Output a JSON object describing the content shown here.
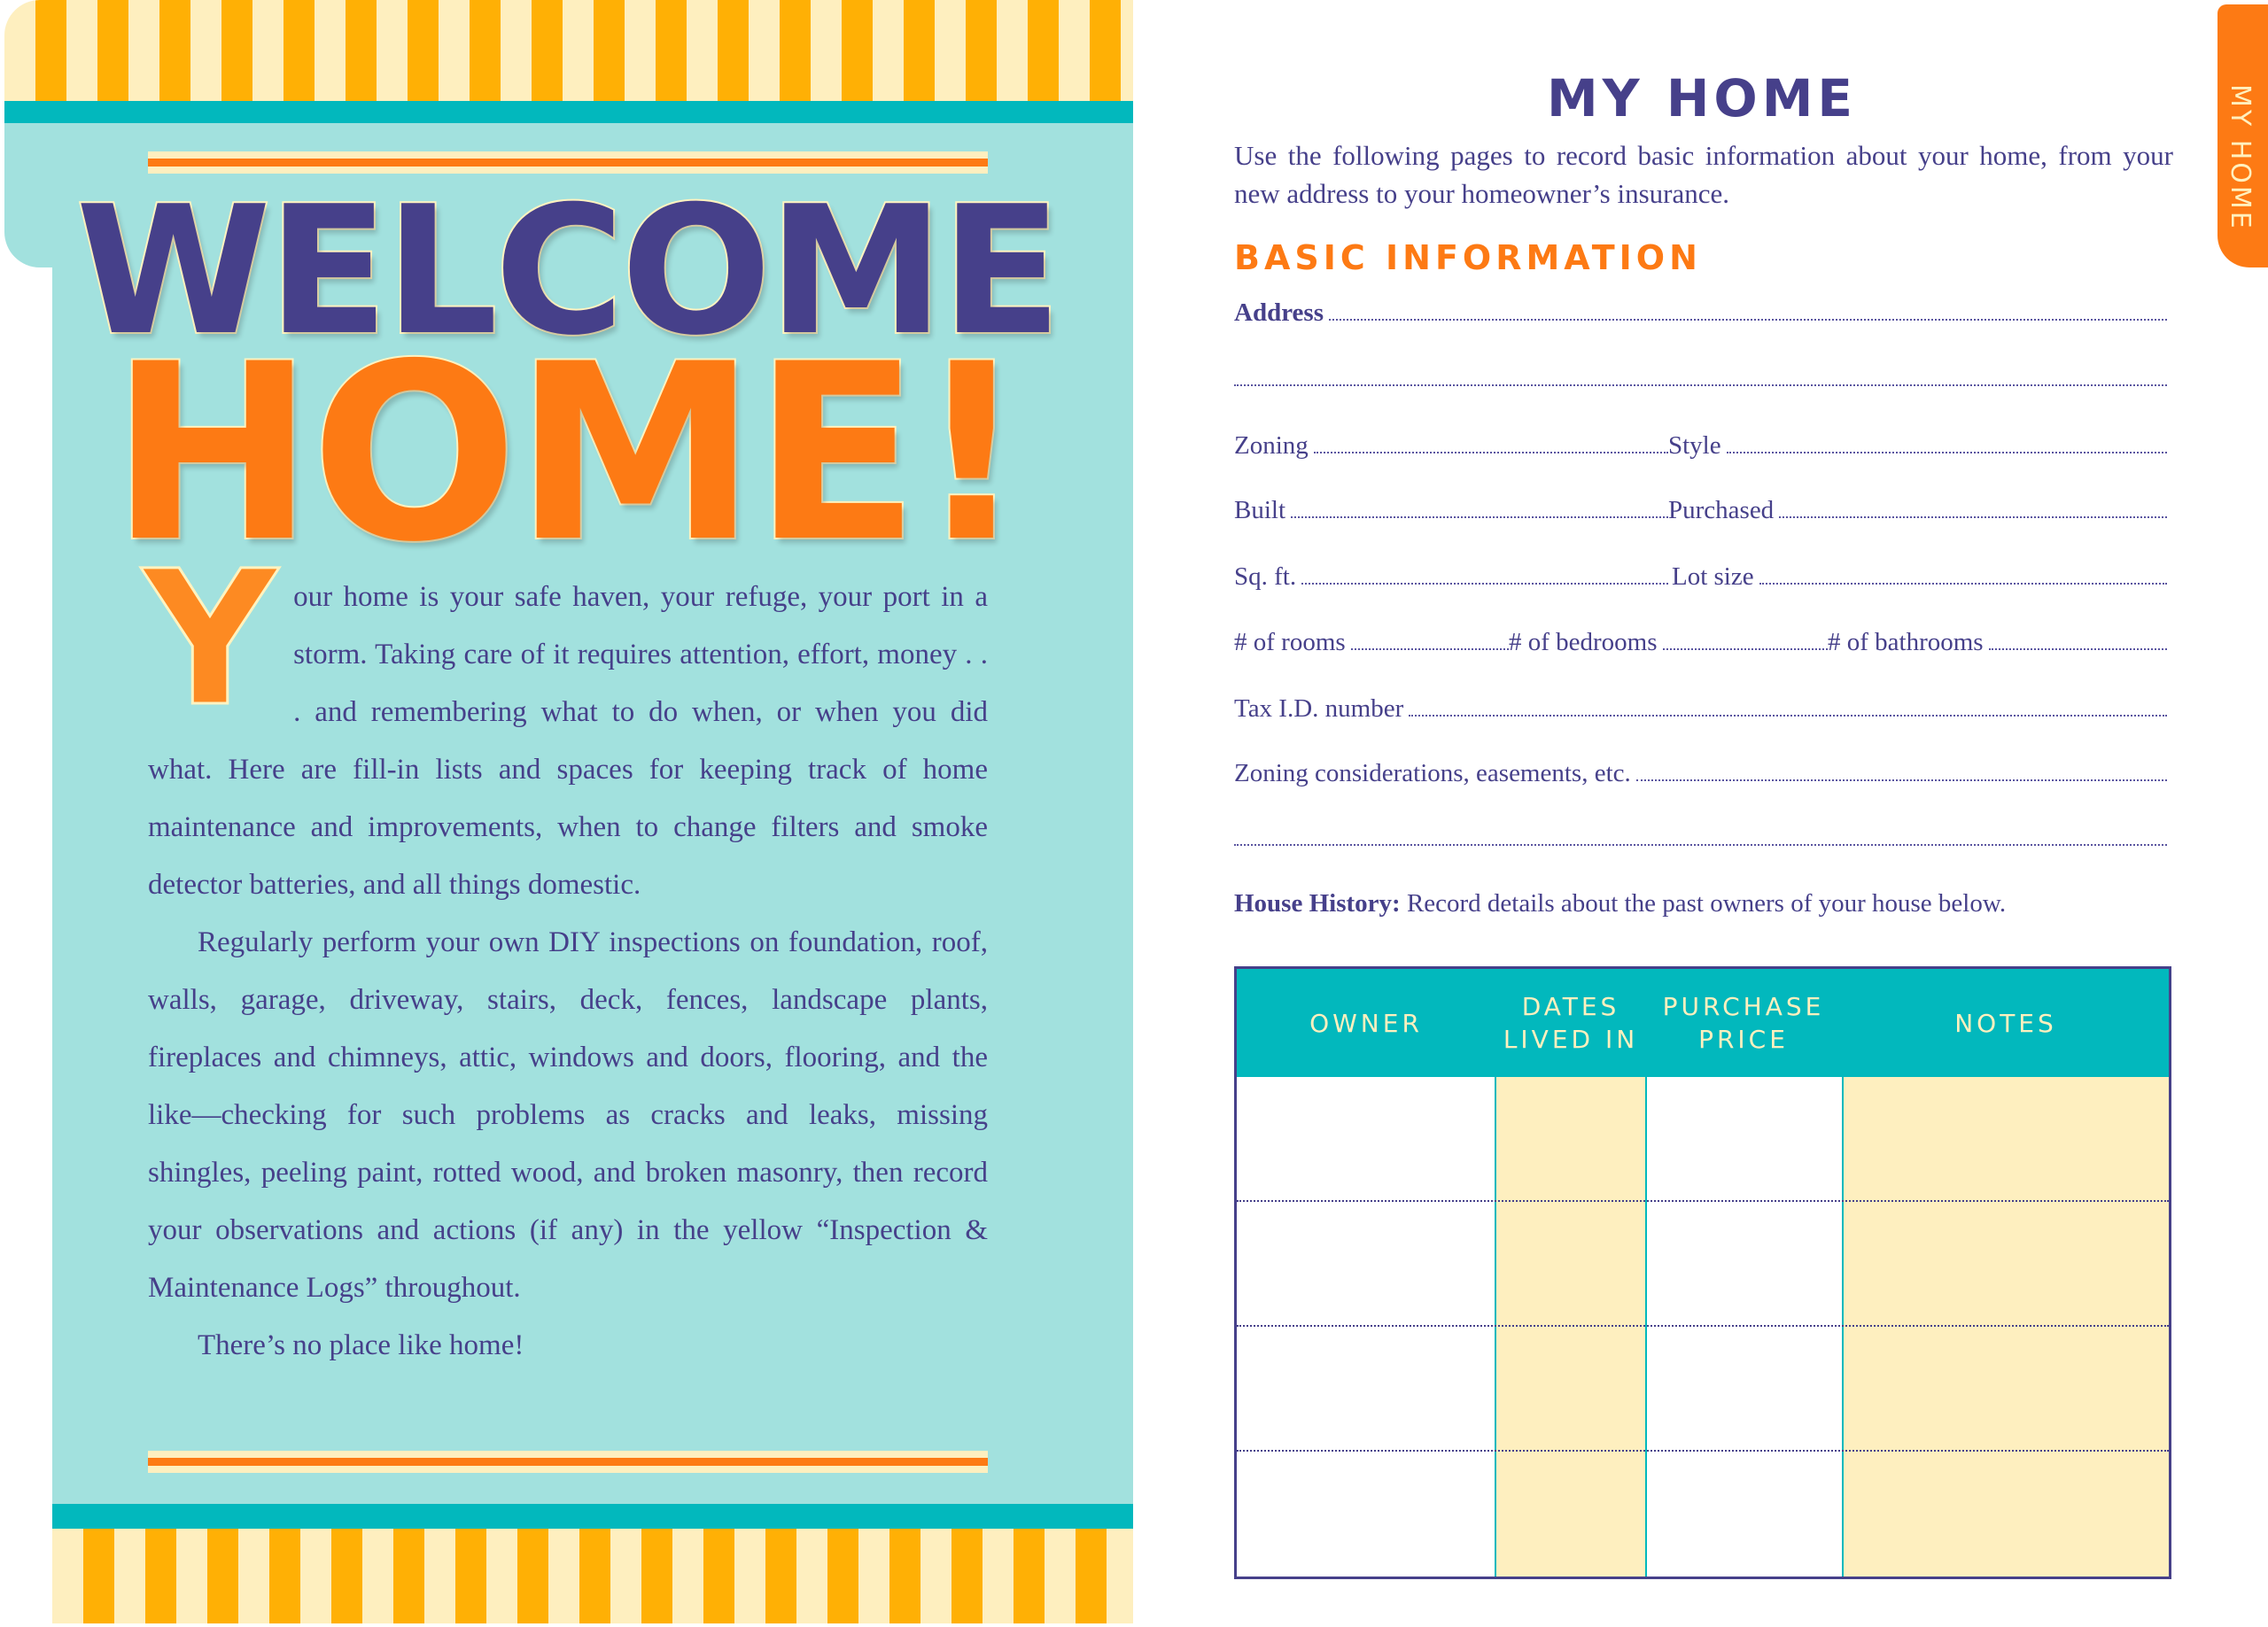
{
  "left_page": {
    "title_line1": "WELCOME",
    "title_line2": "HOME!",
    "drop_cap": "Y",
    "paragraph1": "our home is your safe haven, your refuge, your port in a storm. Taking care of it requires attention, effort, money . . . and remembering what to do when, or when you did what. Here are fill-in lists and spaces for keeping track of home maintenance and improvements, when to change filters and smoke detector batteries, and all things domestic.",
    "paragraph2": "Regularly perform your own DIY inspections on foundation, roof, walls, garage, driveway, stairs, deck, fences, landscape plants, fireplaces and chimneys, attic, windows and doors, flooring, and the like—checking for such problems as cracks and leaks, missing shingles, peeling paint, rotted wood, and broken masonry, then record your observations and actions (if any) in the yellow “Inspection & Maintenance Logs” throughout.",
    "paragraph3": "There’s no place like home!"
  },
  "right_page": {
    "side_tab": "MY HOME",
    "title": "MY HOME",
    "intro": "Use the following pages to record basic information about your home, from your new address to your homeowner’s insurance.",
    "section_title": "BASIC INFORMATION",
    "fields": {
      "address": "Address",
      "zoning": "Zoning",
      "style": "Style",
      "built": "Built",
      "purchased": "Purchased",
      "sqft": "Sq. ft.",
      "lot_size": "Lot size",
      "rooms": "# of rooms",
      "bedrooms": "# of bedrooms",
      "bathrooms": "# of bathrooms",
      "tax_id": "Tax I.D. number",
      "zoning_considerations": "Zoning considerations, easements, etc."
    },
    "history_label": "House History:",
    "history_text": " Record details about the past owners of your house below.",
    "table": {
      "headers": [
        "OWNER",
        "DATES LIVED IN",
        "PURCHASE PRICE",
        "NOTES"
      ]
    }
  },
  "colors": {
    "navy": "#46408a",
    "orange": "#fd7a14",
    "teal": "#02b8bd",
    "light_teal": "#a2e1de",
    "cream": "#feefbf",
    "gold": "#ffb005"
  }
}
